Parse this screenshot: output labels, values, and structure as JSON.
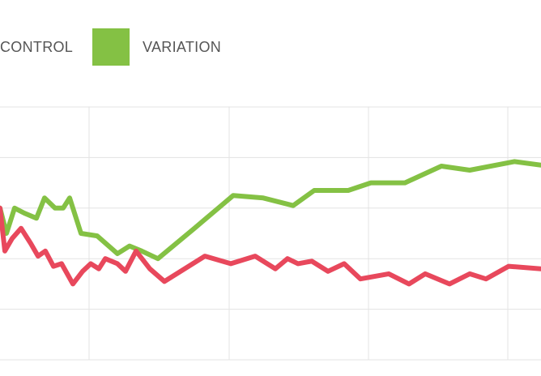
{
  "legend": {
    "items": [
      {
        "label": "CONTROL",
        "color": "#e8485c"
      },
      {
        "label": "VARIATION",
        "color": "#84c144"
      }
    ]
  },
  "chart_data": {
    "type": "line",
    "title": "",
    "xlabel": "",
    "ylabel": "",
    "grid": true,
    "legend_position": "top-left",
    "xlim": [
      0,
      668
    ],
    "ylim": [
      0,
      5
    ],
    "series": [
      {
        "name": "VARIATION",
        "color": "#84c144",
        "points": [
          [
            0,
            3.0
          ],
          [
            8,
            2.5
          ],
          [
            18,
            3.0
          ],
          [
            30,
            2.9
          ],
          [
            45,
            2.8
          ],
          [
            55,
            3.2
          ],
          [
            68,
            3.0
          ],
          [
            78,
            3.0
          ],
          [
            86,
            3.2
          ],
          [
            100,
            2.5
          ],
          [
            120,
            2.45
          ],
          [
            145,
            2.1
          ],
          [
            160,
            2.25
          ],
          [
            175,
            2.15
          ],
          [
            195,
            2.0
          ],
          [
            240,
            2.6
          ],
          [
            288,
            3.25
          ],
          [
            325,
            3.2
          ],
          [
            362,
            3.05
          ],
          [
            388,
            3.35
          ],
          [
            430,
            3.35
          ],
          [
            458,
            3.5
          ],
          [
            500,
            3.5
          ],
          [
            545,
            3.83
          ],
          [
            580,
            3.75
          ],
          [
            635,
            3.92
          ],
          [
            668,
            3.85
          ]
        ]
      },
      {
        "name": "CONTROL",
        "color": "#e8485c",
        "points": [
          [
            0,
            3.0
          ],
          [
            6,
            2.15
          ],
          [
            15,
            2.4
          ],
          [
            26,
            2.6
          ],
          [
            38,
            2.3
          ],
          [
            47,
            2.05
          ],
          [
            56,
            2.15
          ],
          [
            66,
            1.85
          ],
          [
            76,
            1.9
          ],
          [
            90,
            1.5
          ],
          [
            102,
            1.75
          ],
          [
            112,
            1.9
          ],
          [
            122,
            1.8
          ],
          [
            130,
            2.0
          ],
          [
            145,
            1.9
          ],
          [
            155,
            1.75
          ],
          [
            168,
            2.15
          ],
          [
            185,
            1.8
          ],
          [
            203,
            1.55
          ],
          [
            228,
            1.8
          ],
          [
            253,
            2.05
          ],
          [
            285,
            1.9
          ],
          [
            315,
            2.05
          ],
          [
            340,
            1.8
          ],
          [
            355,
            2.0
          ],
          [
            368,
            1.9
          ],
          [
            385,
            1.95
          ],
          [
            405,
            1.75
          ],
          [
            425,
            1.9
          ],
          [
            445,
            1.6
          ],
          [
            480,
            1.7
          ],
          [
            505,
            1.5
          ],
          [
            525,
            1.7
          ],
          [
            555,
            1.5
          ],
          [
            580,
            1.7
          ],
          [
            600,
            1.6
          ],
          [
            628,
            1.85
          ],
          [
            668,
            1.8
          ]
        ]
      }
    ]
  }
}
